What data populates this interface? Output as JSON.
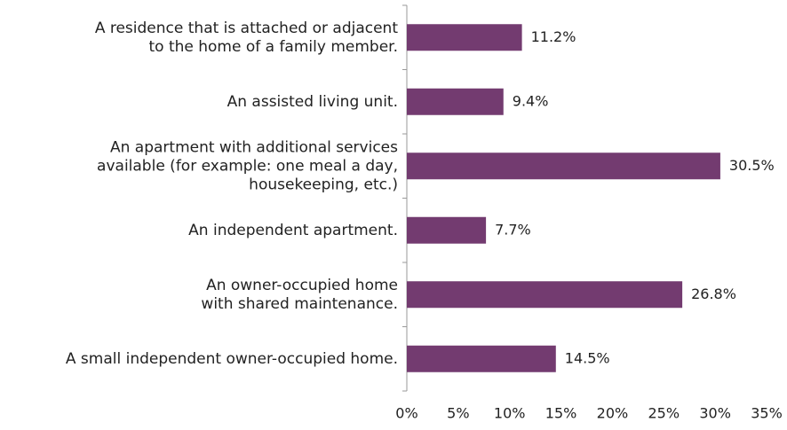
{
  "chart_data": {
    "type": "bar",
    "orientation": "horizontal",
    "categories": [
      [
        "A residence that is attached or adjacent",
        "to the home of a family member."
      ],
      [
        "An assisted living unit."
      ],
      [
        "An apartment with additional services",
        "available (for example: one meal a day,",
        "housekeeping, etc.)"
      ],
      [
        "An independent apartment."
      ],
      [
        "An owner-occupied home",
        "with shared maintenance."
      ],
      [
        "A small independent owner-occupied home."
      ]
    ],
    "values": [
      11.2,
      9.4,
      30.5,
      7.7,
      26.8,
      14.5
    ],
    "value_labels": [
      "11.2%",
      "9.4%",
      "30.5%",
      "7.7%",
      "26.8%",
      "14.5%"
    ],
    "color": "#733b70",
    "xlim": [
      0,
      35
    ],
    "xticks": [
      {
        "value": 0,
        "label": "0%"
      },
      {
        "value": 5,
        "label": "5%"
      },
      {
        "value": 10,
        "label": "10%"
      },
      {
        "value": 15,
        "label": "15%"
      },
      {
        "value": 20,
        "label": "20%"
      },
      {
        "value": 25,
        "label": "25%"
      },
      {
        "value": 30,
        "label": "30%"
      },
      {
        "value": 35,
        "label": "35%"
      }
    ],
    "grid": false
  }
}
